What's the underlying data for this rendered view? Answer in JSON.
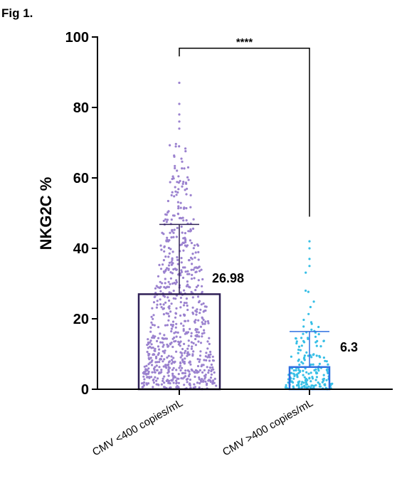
{
  "figure_label": "Fig 1.",
  "chart_data": {
    "type": "bar",
    "subtype": "bar-with-dots-and-sd-errorbars",
    "categories": [
      "CMV <400 copies/mL",
      "CMV >400 copies/mL"
    ],
    "values": [
      26.98,
      6.3
    ],
    "value_labels": [
      "26.98",
      "6.3"
    ],
    "error_upper": [
      46.8,
      16.4
    ],
    "significance": "****",
    "ylabel": "NKG2C %",
    "xlabel": "",
    "ylim": [
      0,
      100
    ],
    "yticks": [
      0,
      20,
      40,
      60,
      80,
      100
    ],
    "grid": false,
    "legend": "none",
    "colors": {
      "bar_1": "#2f2056",
      "dots_1": "#9b82cf",
      "bar_2": "#2f6fe0",
      "dots_2": "#37bfe6",
      "axis": "#000000"
    }
  }
}
